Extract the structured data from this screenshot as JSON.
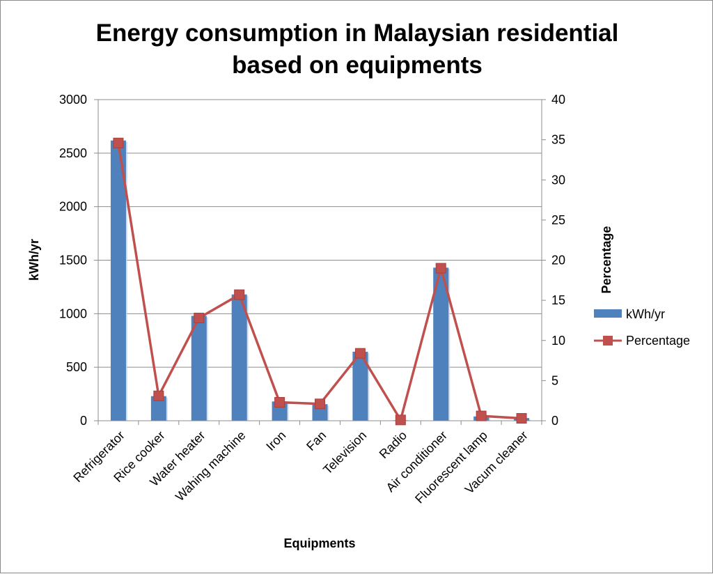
{
  "chart_data": {
    "type": "bar+line",
    "title_lines": [
      "Energy consumption in Malaysian residential",
      "based on equipments"
    ],
    "xlabel": "Equipments",
    "ylabel": "kWh/yr",
    "y2label": "Percentage",
    "ylim": [
      0,
      3000
    ],
    "y2lim": [
      0,
      40
    ],
    "yticks": [
      "0",
      "500",
      "1000",
      "1500",
      "2000",
      "2500",
      "3000"
    ],
    "y2ticks": [
      "0",
      "5",
      "10",
      "15",
      "20",
      "25",
      "30",
      "35",
      "40"
    ],
    "categories": [
      "Refrigerator",
      "Rice cooker",
      "Water heater",
      "Wahing machine",
      "Iron",
      "Fan",
      "Television",
      "Radio",
      "Air conditioner",
      "Fluorescent lamp",
      "Vacum cleaner"
    ],
    "series": [
      {
        "name": "kWh/yr",
        "type": "bar",
        "axis": "left",
        "color": "#4f81bd",
        "values": [
          2618,
          230,
          980,
          1180,
          180,
          155,
          645,
          5,
          1430,
          40,
          25
        ]
      },
      {
        "name": "Percentage",
        "type": "line",
        "axis": "right",
        "color": "#c0504d",
        "values": [
          34.6,
          3.1,
          12.8,
          15.7,
          2.3,
          2.1,
          8.4,
          0.1,
          19.0,
          0.6,
          0.3
        ]
      }
    ],
    "grid": true,
    "legend_position": "right"
  }
}
